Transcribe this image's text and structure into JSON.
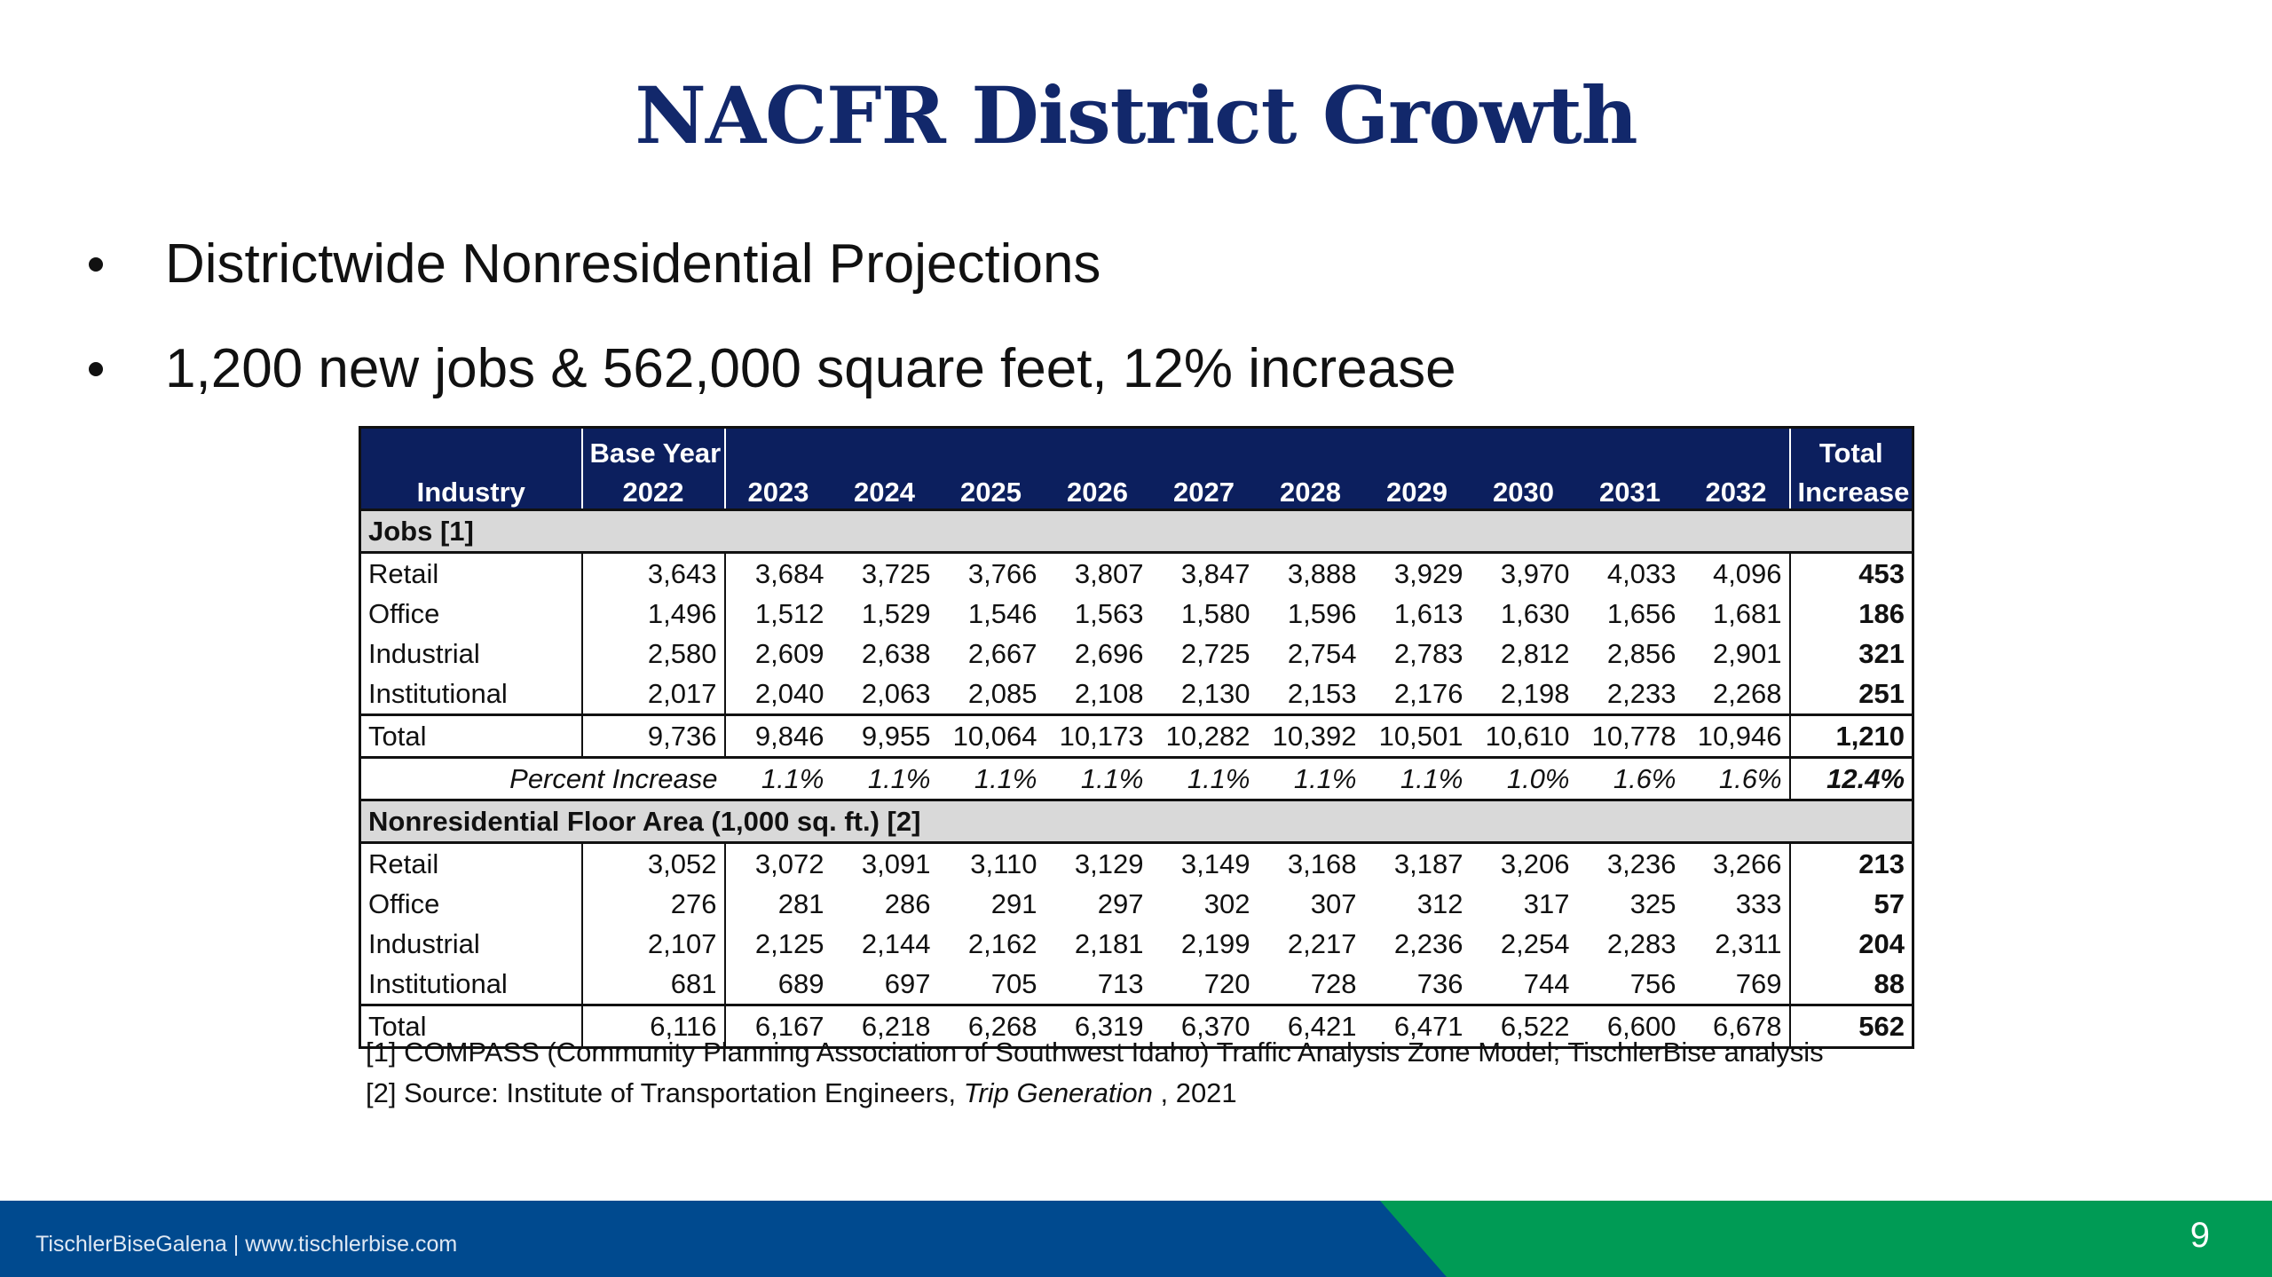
{
  "title": "NACFR District Growth",
  "bullets": [
    "Districtwide Nonresidential Projections",
    "1,200 new jobs & 562,000 square feet, 12% increase"
  ],
  "table": {
    "header": {
      "industry": "Industry",
      "base_top": "Base Year",
      "base_year": "2022",
      "years": [
        "2023",
        "2024",
        "2025",
        "2026",
        "2027",
        "2028",
        "2029",
        "2030",
        "2031",
        "2032"
      ],
      "total_top": "Total",
      "total_bottom": "Increase"
    },
    "sections": [
      {
        "title": "Jobs [1]",
        "rows": [
          {
            "label": "Retail",
            "values": [
              "3,643",
              "3,684",
              "3,725",
              "3,766",
              "3,807",
              "3,847",
              "3,888",
              "3,929",
              "3,970",
              "4,033",
              "4,096"
            ],
            "increase": "453"
          },
          {
            "label": "Office",
            "values": [
              "1,496",
              "1,512",
              "1,529",
              "1,546",
              "1,563",
              "1,580",
              "1,596",
              "1,613",
              "1,630",
              "1,656",
              "1,681"
            ],
            "increase": "186"
          },
          {
            "label": "Industrial",
            "values": [
              "2,580",
              "2,609",
              "2,638",
              "2,667",
              "2,696",
              "2,725",
              "2,754",
              "2,783",
              "2,812",
              "2,856",
              "2,901"
            ],
            "increase": "321"
          },
          {
            "label": "Institutional",
            "values": [
              "2,017",
              "2,040",
              "2,063",
              "2,085",
              "2,108",
              "2,130",
              "2,153",
              "2,176",
              "2,198",
              "2,233",
              "2,268"
            ],
            "increase": "251"
          }
        ],
        "total": {
          "label": "Total",
          "values": [
            "9,736",
            "9,846",
            "9,955",
            "10,064",
            "10,173",
            "10,282",
            "10,392",
            "10,501",
            "10,610",
            "10,778",
            "10,946"
          ],
          "increase": "1,210"
        },
        "percent": {
          "label": "Percent Increase",
          "values": [
            "1.1%",
            "1.1%",
            "1.1%",
            "1.1%",
            "1.1%",
            "1.1%",
            "1.1%",
            "1.0%",
            "1.6%",
            "1.6%"
          ],
          "increase": "12.4%"
        }
      },
      {
        "title": "Nonresidential Floor Area (1,000 sq. ft.) [2]",
        "rows": [
          {
            "label": "Retail",
            "values": [
              "3,052",
              "3,072",
              "3,091",
              "3,110",
              "3,129",
              "3,149",
              "3,168",
              "3,187",
              "3,206",
              "3,236",
              "3,266"
            ],
            "increase": "213"
          },
          {
            "label": "Office",
            "values": [
              "276",
              "281",
              "286",
              "291",
              "297",
              "302",
              "307",
              "312",
              "317",
              "325",
              "333"
            ],
            "increase": "57"
          },
          {
            "label": "Industrial",
            "values": [
              "2,107",
              "2,125",
              "2,144",
              "2,162",
              "2,181",
              "2,199",
              "2,217",
              "2,236",
              "2,254",
              "2,283",
              "2,311"
            ],
            "increase": "204"
          },
          {
            "label": "Institutional",
            "values": [
              "681",
              "689",
              "697",
              "705",
              "713",
              "720",
              "728",
              "736",
              "744",
              "756",
              "769"
            ],
            "increase": "88"
          }
        ],
        "total": {
          "label": "Total",
          "values": [
            "6,116",
            "6,167",
            "6,218",
            "6,268",
            "6,319",
            "6,370",
            "6,421",
            "6,471",
            "6,522",
            "6,600",
            "6,678"
          ],
          "increase": "562"
        }
      }
    ]
  },
  "footnotes": {
    "f1": "[1] COMPASS (Community Planning Association of Southwest Idaho) Traffic Analysis Zone Model; TischlerBise analysis",
    "f2_prefix": "[2] Source: Institute of Transportation Engineers, ",
    "f2_italic": "Trip Generation",
    "f2_suffix": " , 2021"
  },
  "footer": {
    "text": "TischlerBiseGalena  |  www.tischlerbise.com",
    "page": "9"
  },
  "colors": {
    "title": "#12286b",
    "header_bg": "#0c1f5e",
    "footer_blue": "#004a8f",
    "footer_green": "#009b55"
  }
}
